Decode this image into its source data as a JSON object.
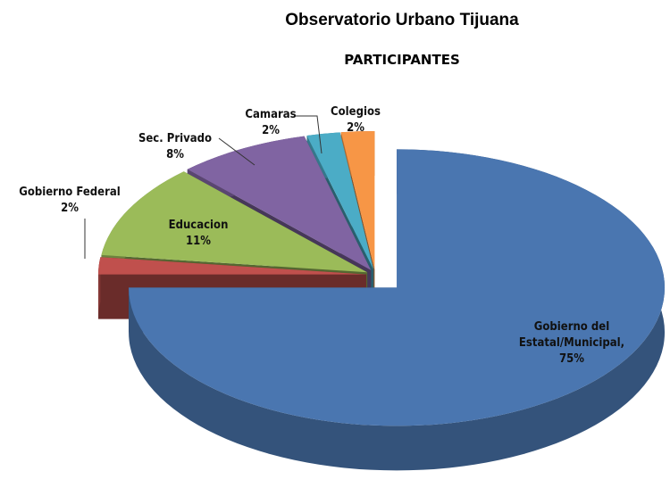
{
  "chart_data": {
    "type": "pie",
    "title": "Observatorio Urbano Tijuana",
    "subtitle": "PARTICIPANTES",
    "categories": [
      "Gobierno del Estatal/Municipal,",
      "Gobierno Federal",
      "Educacion",
      "Sec. Privado",
      "Camaras",
      "Colegios"
    ],
    "values": [
      75,
      2,
      11,
      8,
      2,
      2
    ],
    "value_labels": [
      "75%",
      "2%",
      "11%",
      "8%",
      "2%",
      "2%"
    ],
    "colors": [
      "#4a76b0",
      "#c0504d",
      "#9bbb59",
      "#8064a2",
      "#4bacc6",
      "#f79646"
    ]
  }
}
